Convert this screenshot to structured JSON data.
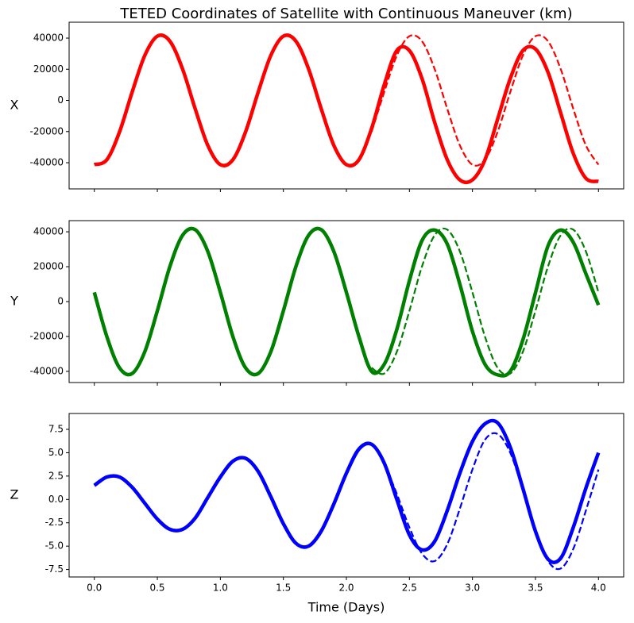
{
  "chart_data": [
    {
      "type": "line",
      "title": "TETED Coordinates of Satellite with Continuous Maneuver (km)",
      "ylabel": "X",
      "x": [
        0,
        0.1,
        0.2,
        0.3,
        0.4,
        0.5,
        0.6,
        0.7,
        0.8,
        0.9,
        1,
        1.1,
        1.2,
        1.3,
        1.4,
        1.5,
        1.6,
        1.7,
        1.8,
        1.9,
        2,
        2.1,
        2.2,
        2.3,
        2.4,
        2.5,
        2.6,
        2.7,
        2.8,
        2.9,
        3,
        3.1,
        3.2,
        3.3,
        3.4,
        3.5,
        3.6,
        3.7,
        3.8,
        3.9,
        4
      ],
      "series": [
        {
          "color": "#ff0000",
          "style": "solid",
          "values": [
            -41250,
            -38000,
            -20200,
            5300,
            28800,
            41250,
            38000,
            20200,
            -5300,
            -28800,
            -41250,
            -38000,
            -20200,
            5300,
            28800,
            41250,
            38000,
            20200,
            -5300,
            -28800,
            -41250,
            -38000,
            -18000,
            10000,
            32000,
            32000,
            14000,
            -14000,
            -38000,
            -51000,
            -51000,
            -38000,
            -12000,
            14000,
            32000,
            33000,
            18000,
            -8000,
            -34000,
            -50000,
            -52000
          ]
        },
        {
          "color": "#ff0000",
          "style": "dashed",
          "values": [
            null,
            null,
            null,
            null,
            null,
            null,
            null,
            null,
            null,
            null,
            null,
            null,
            null,
            null,
            null,
            null,
            null,
            null,
            null,
            null,
            null,
            null,
            -20200,
            5300,
            28800,
            41250,
            38000,
            20200,
            -5300,
            -28800,
            -41250,
            -38000,
            -20200,
            5300,
            28800,
            41250,
            38000,
            20200,
            -5300,
            -28800,
            -41250
          ]
        }
      ],
      "xlim": [
        -0.2,
        4.2
      ],
      "xticks": [
        {
          "value": 0,
          "label": "0.0"
        },
        0.5,
        {
          "value": 1,
          "label": "1.0"
        },
        1.5,
        {
          "value": 2,
          "label": "2.0"
        },
        2.5,
        {
          "value": 3,
          "label": "3.0"
        },
        3.5,
        {
          "value": 4,
          "label": "4.0"
        }
      ],
      "ylim": [
        -56800,
        50200
      ],
      "yticks": [
        -40000,
        -20000,
        0,
        20000,
        40000
      ]
    },
    {
      "type": "line",
      "ylabel": "Y",
      "x": [
        0,
        0.1,
        0.2,
        0.3,
        0.4,
        0.5,
        0.6,
        0.7,
        0.8,
        0.9,
        1,
        1.1,
        1.2,
        1.3,
        1.4,
        1.5,
        1.6,
        1.7,
        1.8,
        1.9,
        2,
        2.1,
        2.2,
        2.3,
        2.4,
        2.5,
        2.6,
        2.7,
        2.8,
        2.9,
        3,
        3.1,
        3.2,
        3.3,
        3.4,
        3.5,
        3.6,
        3.7,
        3.8,
        3.9,
        4
      ],
      "series": [
        {
          "color": "#008000",
          "style": "solid",
          "values": [
            5300,
            -20200,
            -38000,
            -41250,
            -28800,
            -5300,
            20200,
            38000,
            41250,
            28800,
            5300,
            -20200,
            -38000,
            -41250,
            -28800,
            -5300,
            20200,
            38000,
            41250,
            28800,
            5300,
            -20200,
            -40000,
            -36000,
            -16000,
            12000,
            35000,
            41000,
            33000,
            10000,
            -17000,
            -36000,
            -42000,
            -40000,
            -22000,
            5000,
            32000,
            41000,
            34000,
            16000,
            -2000
          ]
        },
        {
          "color": "#008000",
          "style": "dashed",
          "values": [
            null,
            null,
            null,
            null,
            null,
            null,
            null,
            null,
            null,
            null,
            null,
            null,
            null,
            null,
            null,
            null,
            null,
            null,
            null,
            null,
            null,
            null,
            -38000,
            -41250,
            -28800,
            -5300,
            20200,
            38000,
            41250,
            28800,
            5300,
            -20200,
            -38000,
            -41250,
            -28800,
            -5300,
            20200,
            38000,
            41250,
            28800,
            5300
          ]
        }
      ],
      "xlim": [
        -0.2,
        4.2
      ],
      "xticks": [
        {
          "value": 0,
          "label": "0.0"
        },
        0.5,
        {
          "value": 1,
          "label": "1.0"
        },
        1.5,
        {
          "value": 2,
          "label": "2.0"
        },
        2.5,
        {
          "value": 3,
          "label": "3.0"
        },
        3.5,
        {
          "value": 4,
          "label": "4.0"
        }
      ],
      "ylim": [
        -46400,
        46400
      ],
      "yticks": [
        -40000,
        -20000,
        0,
        20000,
        40000
      ]
    },
    {
      "type": "line",
      "ylabel": "Z",
      "xlabel": "Time (Days)",
      "x": [
        0,
        0.1,
        0.2,
        0.3,
        0.4,
        0.5,
        0.6,
        0.7,
        0.8,
        0.9,
        1,
        1.1,
        1.2,
        1.3,
        1.4,
        1.5,
        1.6,
        1.7,
        1.8,
        1.9,
        2,
        2.1,
        2.2,
        2.3,
        2.4,
        2.5,
        2.6,
        2.7,
        2.8,
        2.9,
        3,
        3.1,
        3.2,
        3.3,
        3.4,
        3.5,
        3.6,
        3.7,
        3.8,
        3.9,
        4
      ],
      "series": [
        {
          "color": "#0000ff",
          "style": "solid",
          "values": [
            1.5,
            2.4,
            2.4,
            1.3,
            -0.4,
            -2.1,
            -3.2,
            -3.2,
            -2.0,
            0.2,
            2.4,
            4.1,
            4.4,
            3.0,
            0.3,
            -2.6,
            -4.7,
            -5.0,
            -3.4,
            -0.5,
            2.8,
            5.4,
            5.9,
            3.9,
            0.0,
            -3.8,
            -5.4,
            -4.5,
            -1.2,
            2.8,
            6.2,
            8.1,
            8.2,
            5.6,
            1.2,
            -3.4,
            -6.4,
            -6.3,
            -3.0,
            1.2,
            5.0
          ]
        },
        {
          "color": "#0000ff",
          "style": "dashed",
          "values": [
            null,
            null,
            null,
            null,
            null,
            null,
            null,
            null,
            null,
            null,
            null,
            null,
            null,
            null,
            null,
            null,
            null,
            null,
            null,
            null,
            null,
            null,
            null,
            3.9,
            0.6,
            -3.0,
            -5.8,
            -6.6,
            -4.8,
            -1.0,
            3.2,
            6.4,
            7.0,
            5.0,
            1.0,
            -3.4,
            -6.6,
            -7.4,
            -5.3,
            -1.2,
            3.2
          ]
        }
      ],
      "xlim": [
        -0.2,
        4.2
      ],
      "xticks": [
        {
          "value": 0,
          "label": "0.0"
        },
        0.5,
        {
          "value": 1,
          "label": "1.0"
        },
        1.5,
        {
          "value": 2,
          "label": "2.0"
        },
        2.5,
        {
          "value": 3,
          "label": "3.0"
        },
        3.5,
        {
          "value": 4,
          "label": "4.0"
        }
      ],
      "ylim": [
        -8.3,
        9.2
      ],
      "yticks": [
        {
          "value": -7.5,
          "label": "-7.5"
        },
        {
          "value": -5,
          "label": "-5.0"
        },
        -2.5,
        {
          "value": 0,
          "label": "0.0"
        },
        2.5,
        {
          "value": 5,
          "label": "5.0"
        },
        7.5
      ]
    }
  ]
}
